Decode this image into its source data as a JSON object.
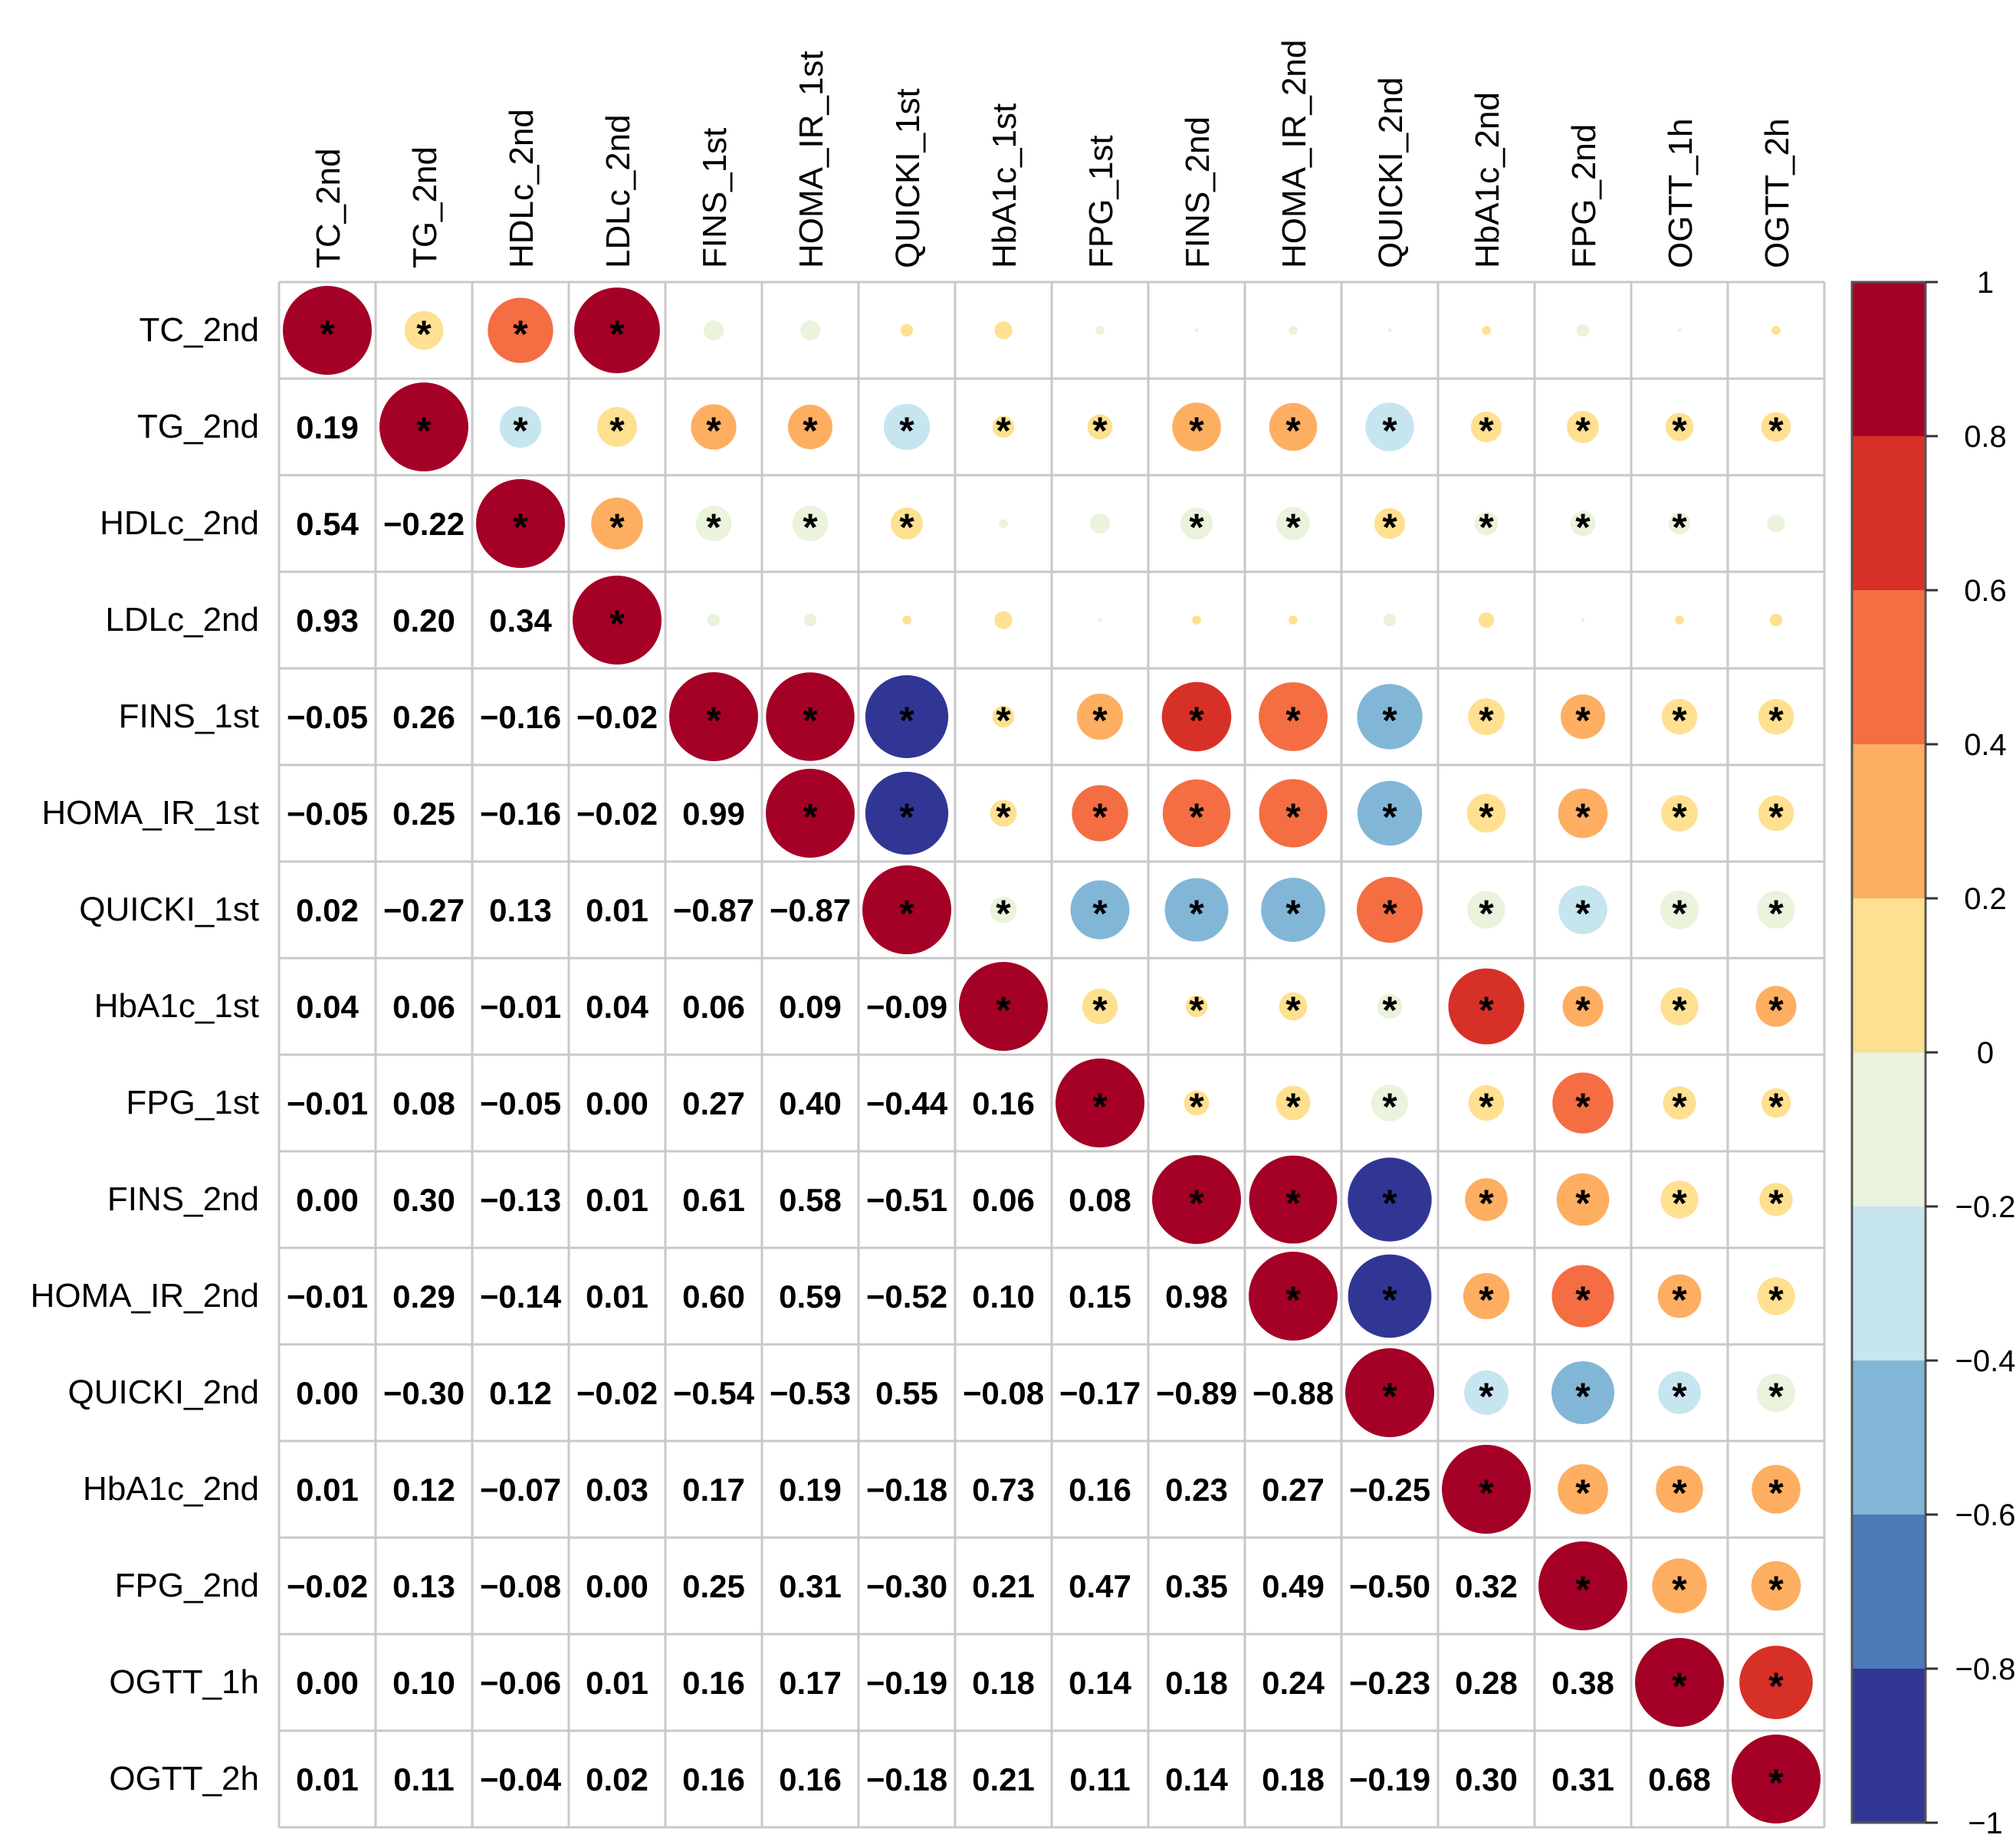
{
  "chart_data": {
    "type": "heatmap",
    "style": "correlation-matrix-mixed",
    "description_lower": "number",
    "description_upper": "circle",
    "variables": [
      "TC_2nd",
      "TG_2nd",
      "HDLc_2nd",
      "LDLc_2nd",
      "FINS_1st",
      "HOMA_IR_1st",
      "QUICKI_1st",
      "HbA1c_1st",
      "FPG_1st",
      "FINS_2nd",
      "HOMA_IR_2nd",
      "QUICKI_2nd",
      "HbA1c_2nd",
      "FPG_2nd",
      "OGTT_1h",
      "OGTT_2h"
    ],
    "lower_labels": [
      [],
      [
        "0.19"
      ],
      [
        "0.54",
        "−0.22"
      ],
      [
        "0.93",
        "0.20",
        "0.34"
      ],
      [
        "−0.05",
        "0.26",
        "−0.16",
        "−0.02"
      ],
      [
        "−0.05",
        "0.25",
        "−0.16",
        "−0.02",
        "0.99"
      ],
      [
        "0.02",
        "−0.27",
        "0.13",
        "0.01",
        "−0.87",
        "−0.87"
      ],
      [
        "0.04",
        "0.06",
        "−0.01",
        "0.04",
        "0.06",
        "0.09",
        "−0.09"
      ],
      [
        "−0.01",
        "0.08",
        "−0.05",
        "0.00",
        "0.27",
        "0.40",
        "−0.44",
        "0.16"
      ],
      [
        "0.00",
        "0.30",
        "−0.13",
        "0.01",
        "0.61",
        "0.58",
        "−0.51",
        "0.06",
        "0.08"
      ],
      [
        "−0.01",
        "0.29",
        "−0.14",
        "0.01",
        "0.60",
        "0.59",
        "−0.52",
        "0.10",
        "0.15",
        "0.98"
      ],
      [
        "0.00",
        "−0.30",
        "0.12",
        "−0.02",
        "−0.54",
        "−0.53",
        "0.55",
        "−0.08",
        "−0.17",
        "−0.89",
        "−0.88"
      ],
      [
        "0.01",
        "0.12",
        "−0.07",
        "0.03",
        "0.17",
        "0.19",
        "−0.18",
        "0.73",
        "0.16",
        "0.23",
        "0.27",
        "−0.25"
      ],
      [
        "−0.02",
        "0.13",
        "−0.08",
        "0.00",
        "0.25",
        "0.31",
        "−0.30",
        "0.21",
        "0.47",
        "0.35",
        "0.49",
        "−0.50",
        "0.32"
      ],
      [
        "0.00",
        "0.10",
        "−0.06",
        "0.01",
        "0.16",
        "0.17",
        "−0.19",
        "0.18",
        "0.14",
        "0.18",
        "0.24",
        "−0.23",
        "0.28",
        "0.38"
      ],
      [
        "0.01",
        "0.11",
        "−0.04",
        "0.02",
        "0.16",
        "0.16",
        "−0.18",
        "0.21",
        "0.11",
        "0.14",
        "0.18",
        "−0.19",
        "0.30",
        "0.31",
        "0.68"
      ]
    ],
    "matrix_lower": [
      [
        1
      ],
      [
        0.19,
        1
      ],
      [
        0.54,
        -0.22,
        1
      ],
      [
        0.93,
        0.2,
        0.34,
        1
      ],
      [
        -0.05,
        0.26,
        -0.16,
        -0.02,
        1
      ],
      [
        -0.05,
        0.25,
        -0.16,
        -0.02,
        0.99,
        1
      ],
      [
        0.02,
        -0.27,
        0.13,
        0.01,
        -0.87,
        -0.87,
        1
      ],
      [
        0.04,
        0.06,
        -0.01,
        0.04,
        0.06,
        0.09,
        -0.09,
        1
      ],
      [
        -0.01,
        0.08,
        -0.05,
        0.0,
        0.27,
        0.4,
        -0.44,
        0.16,
        1
      ],
      [
        0.0,
        0.3,
        -0.13,
        0.01,
        0.61,
        0.58,
        -0.51,
        0.06,
        0.08,
        1
      ],
      [
        -0.01,
        0.29,
        -0.14,
        0.01,
        0.6,
        0.59,
        -0.52,
        0.1,
        0.15,
        0.98,
        1
      ],
      [
        0.0,
        -0.3,
        0.12,
        -0.02,
        -0.54,
        -0.53,
        0.55,
        -0.08,
        -0.17,
        -0.89,
        -0.88,
        1
      ],
      [
        0.01,
        0.12,
        -0.07,
        0.03,
        0.17,
        0.19,
        -0.18,
        0.73,
        0.16,
        0.23,
        0.27,
        -0.25,
        1
      ],
      [
        -0.02,
        0.13,
        -0.08,
        0.0,
        0.25,
        0.31,
        -0.3,
        0.21,
        0.47,
        0.35,
        0.49,
        -0.5,
        0.32,
        1
      ],
      [
        0.0,
        0.1,
        -0.06,
        0.01,
        0.16,
        0.17,
        -0.19,
        0.18,
        0.14,
        0.18,
        0.24,
        -0.23,
        0.28,
        0.38,
        1
      ],
      [
        0.01,
        0.11,
        -0.04,
        0.02,
        0.16,
        0.16,
        -0.18,
        0.21,
        0.11,
        0.14,
        0.18,
        -0.19,
        0.3,
        0.31,
        0.68,
        1
      ]
    ],
    "significance_upper": [
      [
        1,
        1,
        1,
        1,
        0,
        0,
        0,
        0,
        0,
        0,
        0,
        0,
        0,
        0,
        0,
        0
      ],
      [
        1,
        1,
        1,
        1,
        1,
        1,
        1,
        1,
        1,
        1,
        1,
        1,
        1,
        1,
        1,
        1
      ],
      [
        1,
        1,
        1,
        1,
        1,
        1,
        1,
        0,
        0,
        1,
        1,
        1,
        1,
        1,
        1,
        0
      ],
      [
        1,
        1,
        1,
        1,
        0,
        0,
        0,
        0,
        0,
        0,
        0,
        0,
        0,
        0,
        0,
        0
      ],
      [
        0,
        1,
        1,
        0,
        1,
        1,
        1,
        1,
        1,
        1,
        1,
        1,
        1,
        1,
        1,
        1
      ],
      [
        0,
        1,
        1,
        0,
        1,
        1,
        1,
        1,
        1,
        1,
        1,
        1,
        1,
        1,
        1,
        1
      ],
      [
        0,
        1,
        1,
        0,
        1,
        1,
        1,
        1,
        1,
        1,
        1,
        1,
        1,
        1,
        1,
        1
      ],
      [
        0,
        1,
        0,
        0,
        1,
        1,
        1,
        1,
        1,
        1,
        1,
        1,
        1,
        1,
        1,
        1
      ],
      [
        0,
        1,
        0,
        0,
        1,
        1,
        1,
        1,
        1,
        1,
        1,
        1,
        1,
        1,
        1,
        1
      ],
      [
        0,
        1,
        1,
        0,
        1,
        1,
        1,
        1,
        1,
        1,
        1,
        1,
        1,
        1,
        1,
        1
      ],
      [
        0,
        1,
        1,
        0,
        1,
        1,
        1,
        1,
        1,
        1,
        1,
        1,
        1,
        1,
        1,
        1
      ],
      [
        0,
        1,
        1,
        0,
        1,
        1,
        1,
        1,
        1,
        1,
        1,
        1,
        1,
        1,
        1,
        1
      ],
      [
        0,
        1,
        1,
        0,
        1,
        1,
        1,
        1,
        1,
        1,
        1,
        1,
        1,
        1,
        1,
        1
      ],
      [
        0,
        1,
        1,
        0,
        1,
        1,
        1,
        1,
        1,
        1,
        1,
        1,
        1,
        1,
        1,
        1
      ],
      [
        0,
        1,
        1,
        0,
        1,
        1,
        1,
        1,
        1,
        1,
        1,
        1,
        1,
        1,
        1,
        1
      ],
      [
        0,
        1,
        0,
        0,
        1,
        1,
        1,
        1,
        1,
        1,
        1,
        1,
        1,
        1,
        1,
        1
      ]
    ],
    "significance_marker": "*",
    "colorbar": {
      "range": [
        -1,
        1
      ],
      "tick_values": [
        1,
        0.8,
        0.6,
        0.4,
        0.2,
        0,
        -0.2,
        -0.4,
        -0.6,
        -0.8,
        -1
      ],
      "tick_labels": [
        "1",
        "0.8",
        "0.6",
        "0.4",
        "0.2",
        "0",
        "−0.2",
        "−0.4",
        "−0.6",
        "−0.8",
        "−1"
      ],
      "bins_top_to_bottom": [
        "#a50026",
        "#d73027",
        "#f46d43",
        "#fdae61",
        "#fee090",
        "#eaf3db",
        "#c6e5ef",
        "#82b6d7",
        "#4a7ab8",
        "#313695"
      ]
    },
    "grid": true,
    "legend": "right"
  }
}
